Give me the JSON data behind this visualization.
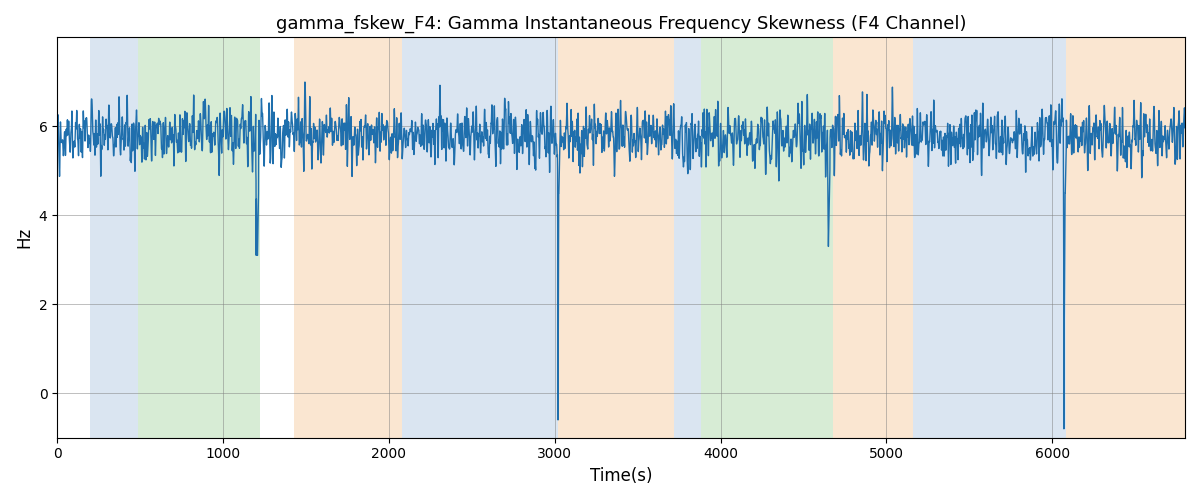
{
  "title": "gamma_fskew_F4: Gamma Instantaneous Frequency Skewness (F4 Channel)",
  "xlabel": "Time(s)",
  "ylabel": "Hz",
  "xlim": [
    0,
    6800
  ],
  "ylim": [
    -1.0,
    8.0
  ],
  "yticks": [
    0,
    2,
    4,
    6
  ],
  "line_color": "#1f6fad",
  "line_width": 1.0,
  "bg_bands": [
    {
      "xmin": 200,
      "xmax": 490,
      "color": "#adc6e0",
      "alpha": 0.45
    },
    {
      "xmin": 490,
      "xmax": 1220,
      "color": "#a8d5a2",
      "alpha": 0.45
    },
    {
      "xmin": 1430,
      "xmax": 2080,
      "color": "#f5c99a",
      "alpha": 0.45
    },
    {
      "xmin": 2080,
      "xmax": 3020,
      "color": "#adc6e0",
      "alpha": 0.45
    },
    {
      "xmin": 3020,
      "xmax": 3720,
      "color": "#f5c99a",
      "alpha": 0.45
    },
    {
      "xmin": 3720,
      "xmax": 3880,
      "color": "#adc6e0",
      "alpha": 0.45
    },
    {
      "xmin": 3880,
      "xmax": 4680,
      "color": "#a8d5a2",
      "alpha": 0.45
    },
    {
      "xmin": 4680,
      "xmax": 5160,
      "color": "#f5c99a",
      "alpha": 0.45
    },
    {
      "xmin": 5160,
      "xmax": 5990,
      "color": "#adc6e0",
      "alpha": 0.45
    },
    {
      "xmin": 5990,
      "xmax": 6080,
      "color": "#adc6e0",
      "alpha": 0.45
    },
    {
      "xmin": 6080,
      "xmax": 6800,
      "color": "#f5c99a",
      "alpha": 0.45
    }
  ],
  "seed": 42,
  "base_value": 5.8,
  "noise_scale_low": 0.25,
  "noise_scale_high": 0.18,
  "sample_rate": 1
}
